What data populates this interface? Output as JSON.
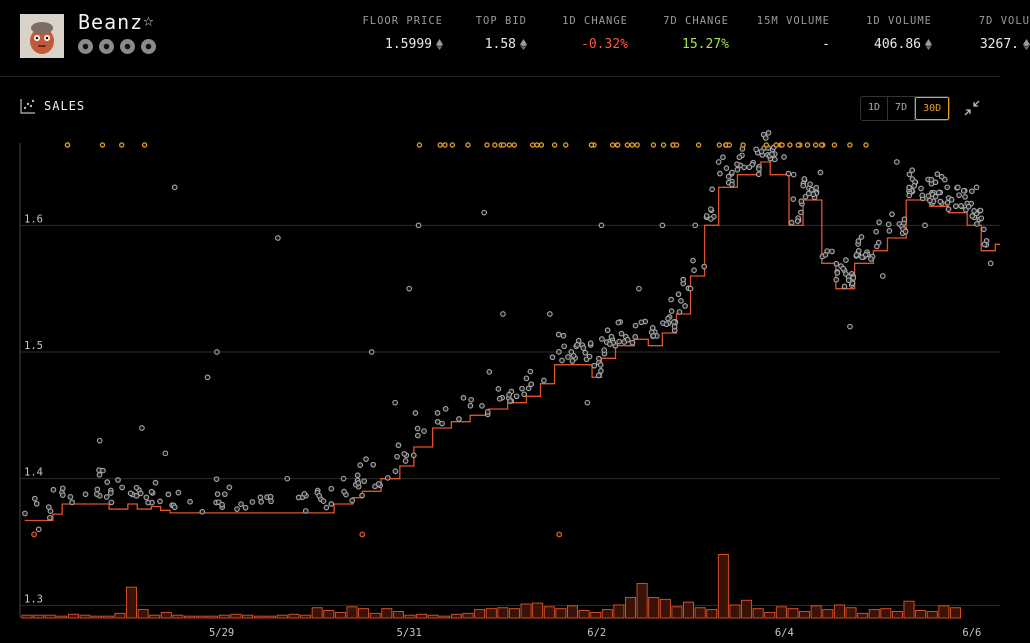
{
  "collection": {
    "name": "Beanz",
    "star_icon": "star-outline-icon",
    "links": [
      "opensea-icon",
      "magic-eden-icon",
      "website-icon",
      "stats-icon"
    ]
  },
  "stats": [
    {
      "label": "FLOOR PRICE",
      "value": "1.5999",
      "eth": true,
      "tone": ""
    },
    {
      "label": "TOP BID",
      "value": "1.58",
      "eth": true,
      "tone": ""
    },
    {
      "label": "1D CHANGE",
      "value": "-0.32%",
      "eth": false,
      "tone": "neg"
    },
    {
      "label": "7D CHANGE",
      "value": "15.27%",
      "eth": false,
      "tone": "pos"
    },
    {
      "label": "15M VOLUME",
      "value": "-",
      "eth": false,
      "tone": ""
    },
    {
      "label": "1D VOLUME",
      "value": "406.86",
      "eth": true,
      "tone": ""
    },
    {
      "label": "7D VOLU",
      "value": "3267.",
      "eth": true,
      "tone": ""
    }
  ],
  "panel": {
    "title": "SALES",
    "ranges": [
      "1D",
      "7D",
      "30D"
    ],
    "active_range": "30D"
  },
  "colors": {
    "accent": "#f0a020",
    "line": "#e0542a",
    "point": "#a8a8a8",
    "negative": "#ff5a3c",
    "positive": "#a6e05a"
  },
  "chart_data": {
    "type": "scatter",
    "x_ticks": [
      "5/29",
      "5/31",
      "6/2",
      "6/4",
      "6/6"
    ],
    "x_tick_days": [
      2,
      4,
      6,
      8,
      10
    ],
    "x_range_days": [
      -0.15,
      10.3
    ],
    "y_ticks": [
      "1.3",
      "1.4",
      "1.5",
      "1.6"
    ],
    "y_tick_values": [
      1.3,
      1.4,
      1.5,
      1.6
    ],
    "ylim": [
      1.29,
      1.665
    ],
    "floor_step": [
      [
        -0.1,
        1.367
      ],
      [
        0.2,
        1.372
      ],
      [
        0.3,
        1.38
      ],
      [
        0.7,
        1.38
      ],
      [
        0.8,
        1.376
      ],
      [
        1.0,
        1.38
      ],
      [
        1.1,
        1.376
      ],
      [
        1.25,
        1.378
      ],
      [
        1.35,
        1.375
      ],
      [
        1.45,
        1.373
      ],
      [
        3.1,
        1.373
      ],
      [
        3.2,
        1.38
      ],
      [
        3.4,
        1.385
      ],
      [
        3.5,
        1.39
      ],
      [
        3.7,
        1.4
      ],
      [
        3.9,
        1.41
      ],
      [
        4.05,
        1.425
      ],
      [
        4.25,
        1.44
      ],
      [
        4.45,
        1.445
      ],
      [
        4.65,
        1.45
      ],
      [
        4.85,
        1.455
      ],
      [
        5.05,
        1.46
      ],
      [
        5.25,
        1.465
      ],
      [
        5.4,
        1.475
      ],
      [
        5.55,
        1.49
      ],
      [
        5.8,
        1.49
      ],
      [
        5.95,
        1.48
      ],
      [
        6.05,
        1.495
      ],
      [
        6.2,
        1.505
      ],
      [
        6.4,
        1.51
      ],
      [
        6.55,
        1.505
      ],
      [
        6.7,
        1.515
      ],
      [
        6.85,
        1.53
      ],
      [
        7.0,
        1.56
      ],
      [
        7.15,
        1.6
      ],
      [
        7.3,
        1.63
      ],
      [
        7.5,
        1.64
      ],
      [
        7.75,
        1.65
      ],
      [
        7.85,
        1.64
      ],
      [
        8.05,
        1.6
      ],
      [
        8.2,
        1.62
      ],
      [
        8.4,
        1.57
      ],
      [
        8.55,
        1.55
      ],
      [
        8.75,
        1.57
      ],
      [
        8.95,
        1.58
      ],
      [
        9.1,
        1.59
      ],
      [
        9.3,
        1.62
      ],
      [
        9.55,
        1.615
      ],
      [
        9.75,
        1.61
      ],
      [
        9.95,
        1.6
      ],
      [
        10.1,
        1.58
      ],
      [
        10.25,
        1.585
      ]
    ],
    "sales_samples": 400,
    "spread_outliers": [
      [
        0.05,
        1.36
      ],
      [
        1.5,
        1.63
      ],
      [
        1.85,
        1.48
      ],
      [
        1.95,
        1.5
      ],
      [
        2.6,
        1.59
      ],
      [
        3.6,
        1.5
      ],
      [
        4.1,
        1.6
      ],
      [
        4.0,
        1.55
      ],
      [
        4.8,
        1.61
      ],
      [
        5.0,
        1.53
      ],
      [
        5.5,
        1.53
      ],
      [
        6.05,
        1.6
      ],
      [
        6.7,
        1.6
      ],
      [
        7.05,
        1.6
      ],
      [
        7.3,
        1.65
      ],
      [
        7.7,
        1.66
      ],
      [
        8.1,
        1.64
      ],
      [
        9.2,
        1.65
      ],
      [
        9.5,
        1.6
      ],
      [
        9.85,
        1.63
      ],
      [
        10.05,
        1.63
      ],
      [
        10.2,
        1.57
      ],
      [
        0.7,
        1.43
      ],
      [
        1.15,
        1.44
      ],
      [
        1.4,
        1.42
      ],
      [
        2.7,
        1.4
      ],
      [
        3.3,
        1.4
      ],
      [
        3.85,
        1.46
      ],
      [
        5.9,
        1.46
      ],
      [
        6.45,
        1.55
      ],
      [
        7.0,
        1.55
      ],
      [
        8.7,
        1.52
      ],
      [
        9.05,
        1.56
      ]
    ],
    "orange_outliers": [
      [
        0.0,
        1.356
      ],
      [
        3.5,
        1.356
      ],
      [
        5.6,
        1.356
      ]
    ],
    "volume_bars": [
      0.3,
      0.3,
      0.3,
      0.2,
      0.4,
      0.3,
      0.2,
      0.2,
      0.5,
      3.3,
      0.9,
      0.3,
      0.6,
      0.3,
      0.2,
      0.2,
      0.2,
      0.3,
      0.4,
      0.3,
      0.2,
      0.2,
      0.3,
      0.4,
      0.3,
      1.1,
      0.8,
      0.6,
      1.2,
      1.0,
      0.5,
      1.0,
      0.7,
      0.3,
      0.4,
      0.3,
      0.2,
      0.4,
      0.5,
      0.9,
      1.0,
      1.1,
      1.0,
      1.5,
      1.6,
      1.2,
      1.0,
      1.3,
      0.8,
      0.6,
      0.9,
      1.4,
      2.2,
      3.7,
      2.2,
      2.0,
      1.2,
      1.7,
      1.1,
      0.9,
      6.8,
      1.4,
      1.9,
      1.0,
      0.6,
      1.2,
      1.0,
      0.7,
      1.3,
      0.9,
      1.4,
      1.1,
      0.5,
      0.9,
      1.0,
      0.7,
      1.8,
      0.8,
      0.7,
      1.3,
      1.1
    ],
    "volume_max": 7.5,
    "top_marker_count": 56
  }
}
